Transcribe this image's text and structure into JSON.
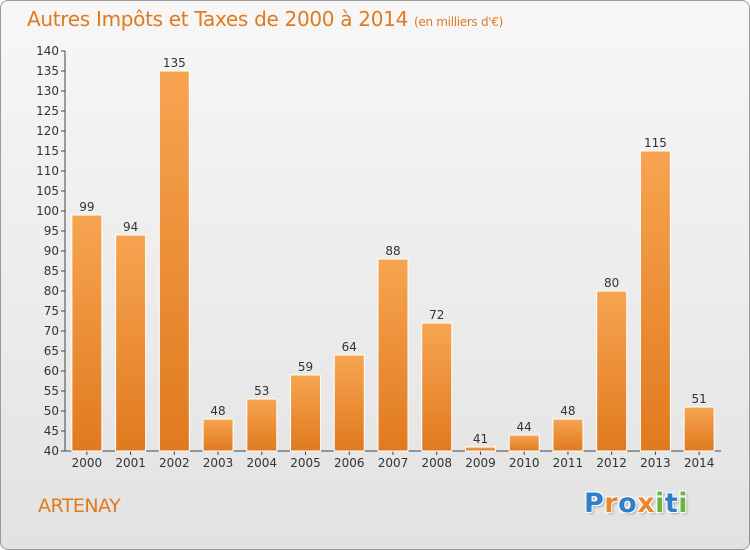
{
  "header": {
    "title": "Autres Impôts et Taxes de 2000 à 2014",
    "unit": "(en milliers d'€)"
  },
  "footer": {
    "place": "ARTENAY",
    "logo_letters": [
      "P",
      "r",
      "o",
      "x",
      "i",
      "t",
      "i"
    ]
  },
  "colors": {
    "accent": "#e07a1e",
    "bar_light": "#f7a451",
    "bar_dark": "#e07a1e",
    "logo": [
      "#2e7fc7",
      "#e8882a",
      "#2e7fc7",
      "#e8882a",
      "#6bb33c",
      "#2e7fc7",
      "#6bb33c"
    ]
  },
  "chart_data": {
    "type": "bar",
    "title": "Autres Impôts et Taxes de 2000 à 2014",
    "subtitle": "(en milliers d'€)",
    "categories": [
      "2000",
      "2001",
      "2002",
      "2003",
      "2004",
      "2005",
      "2006",
      "2007",
      "2008",
      "2009",
      "2010",
      "2011",
      "2012",
      "2013",
      "2014"
    ],
    "values": [
      99,
      94,
      135,
      48,
      53,
      59,
      64,
      88,
      72,
      41,
      44,
      48,
      80,
      115,
      51
    ],
    "ylim": [
      40,
      140
    ],
    "yticks": [
      40,
      45,
      50,
      55,
      60,
      65,
      70,
      75,
      80,
      85,
      90,
      95,
      100,
      105,
      110,
      115,
      120,
      125,
      130,
      135,
      140
    ],
    "grid": false,
    "data_labels": true
  }
}
